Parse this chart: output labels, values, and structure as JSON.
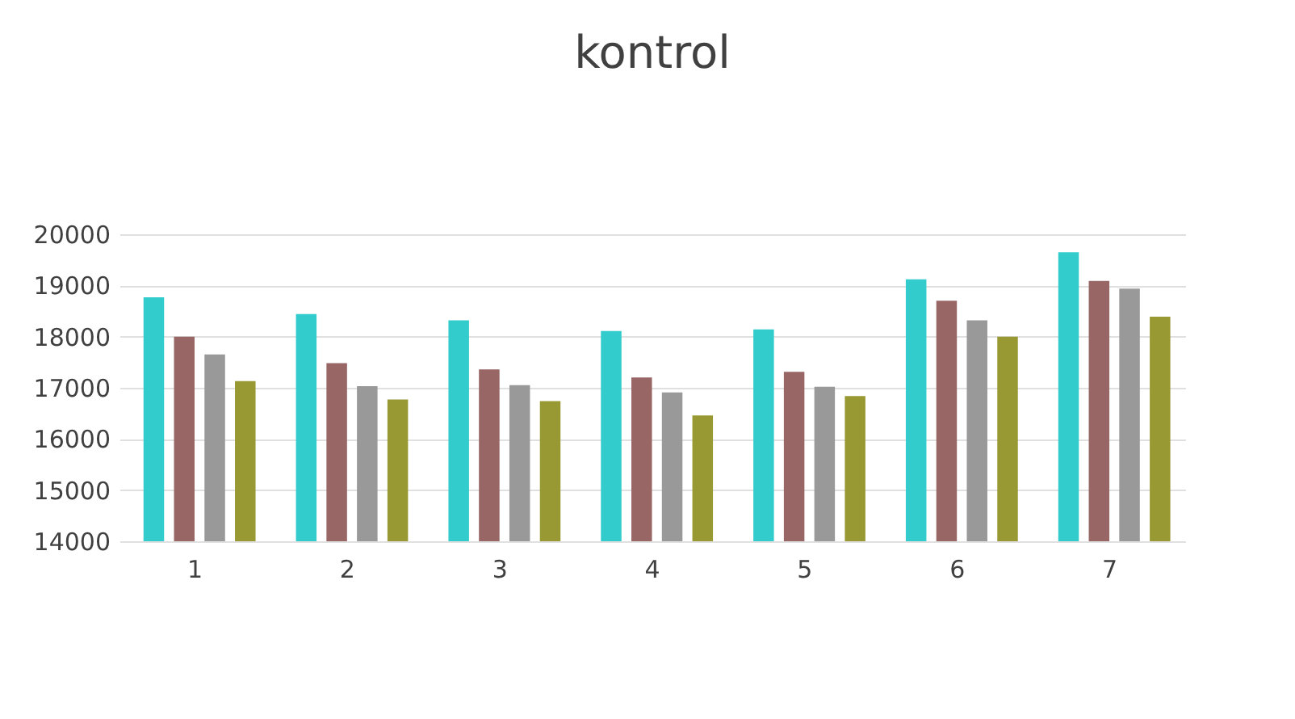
{
  "chart_data": {
    "type": "bar",
    "title": "kontrol",
    "categories": [
      "1",
      "2",
      "3",
      "4",
      "5",
      "6",
      "7"
    ],
    "series": [
      {
        "color": "#33cccc",
        "values": [
          18770,
          18440,
          18320,
          18110,
          18140,
          19120,
          19650
        ]
      },
      {
        "color": "#996666",
        "values": [
          18000,
          17480,
          17360,
          17200,
          17310,
          18700,
          19090
        ]
      },
      {
        "color": "#999999",
        "values": [
          17650,
          17030,
          17050,
          16910,
          17020,
          18320,
          18940
        ]
      },
      {
        "color": "#999933",
        "values": [
          17130,
          16770,
          16740,
          16460,
          16840,
          18000,
          18390
        ]
      }
    ],
    "ylim": [
      14000,
      20000
    ],
    "yticks": [
      14000,
      15000,
      16000,
      17000,
      18000,
      19000,
      20000
    ],
    "grid": "y"
  }
}
